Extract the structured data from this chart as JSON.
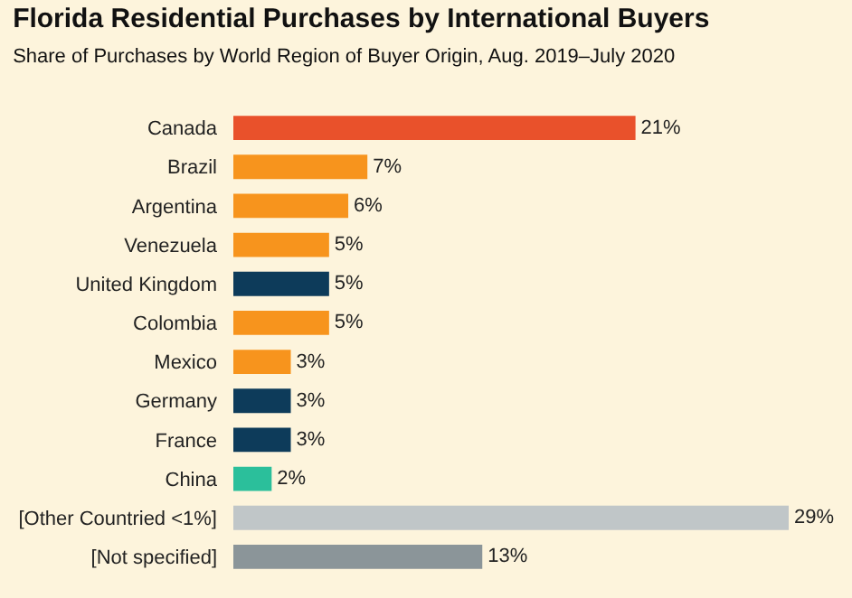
{
  "chart_data": {
    "type": "bar",
    "orientation": "horizontal",
    "title": "Florida Residential Purchases by International Buyers",
    "subtitle": "Share of Purchases by World Region of Buyer Origin, Aug. 2019–July 2020",
    "categories": [
      "Canada",
      "Brazil",
      "Argentina",
      "Venezuela",
      "United Kingdom",
      "Colombia",
      "Mexico",
      "Germany",
      "France",
      "China",
      "[Other Countried <1%]",
      "[Not specified]"
    ],
    "values": [
      21,
      7,
      6,
      5,
      5,
      5,
      3,
      3,
      3,
      2,
      29,
      13
    ],
    "value_labels": [
      "21%",
      "7%",
      "6%",
      "5%",
      "5%",
      "5%",
      "3%",
      "3%",
      "3%",
      "2%",
      "29%",
      "13%"
    ],
    "colors": [
      "#e9512b",
      "#f7941d",
      "#f7941d",
      "#f7941d",
      "#0d3b5a",
      "#f7941d",
      "#f7941d",
      "#0d3b5a",
      "#0d3b5a",
      "#2bbf9b",
      "#c0c6c8",
      "#8b9599"
    ],
    "legend": false,
    "grid": false
  }
}
